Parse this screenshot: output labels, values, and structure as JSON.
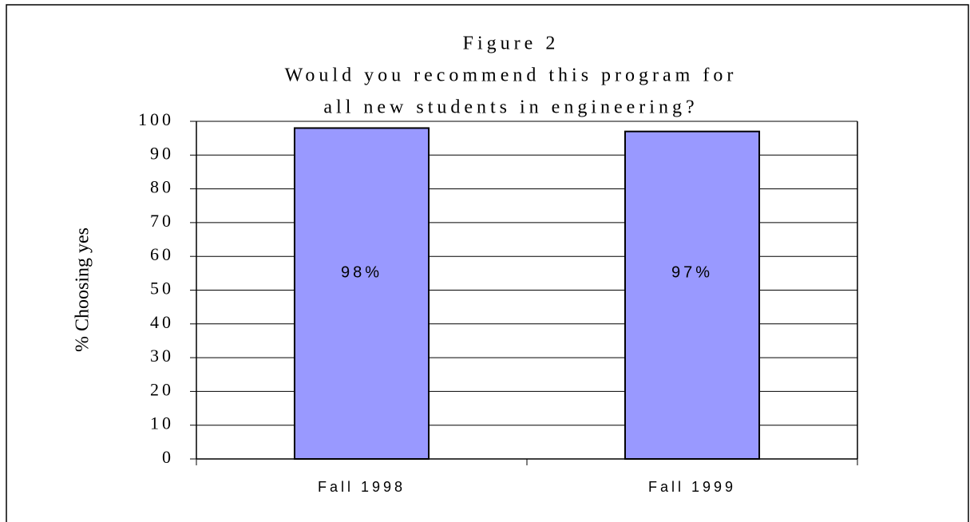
{
  "chart_data": {
    "type": "bar",
    "title": [
      "Figure 2",
      "Would you recommend this program for",
      "all new students in engineering?"
    ],
    "y_label": "% Choosing yes",
    "categories": [
      "Fall 1998",
      "Fall 1999"
    ],
    "values": [
      98,
      97
    ],
    "value_labels": [
      "98%",
      "97%"
    ],
    "color": "#9999ff",
    "ylim": [
      0,
      100
    ],
    "yticks": [
      0,
      10,
      20,
      30,
      40,
      50,
      60,
      70,
      80,
      90,
      100
    ],
    "grid": true
  }
}
